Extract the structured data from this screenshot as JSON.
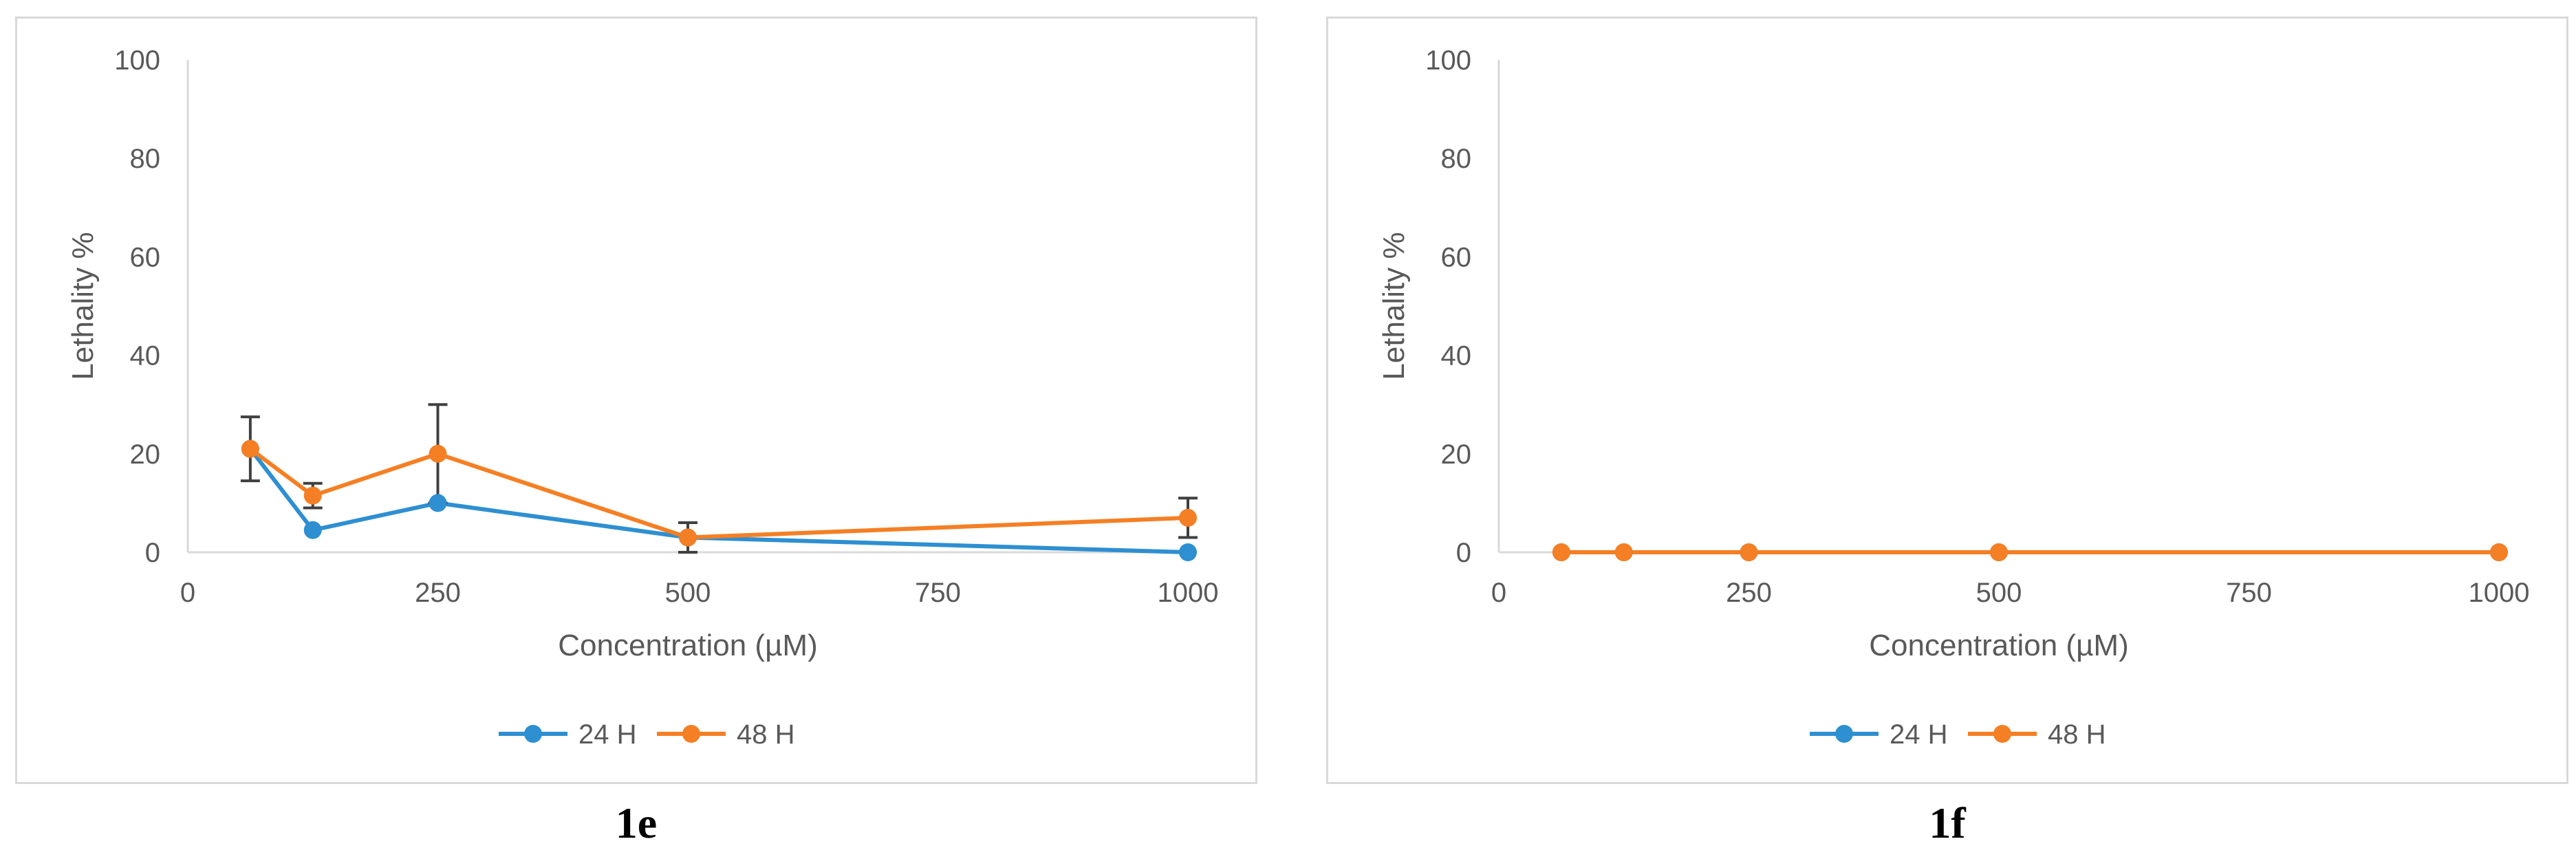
{
  "chart_data": [
    {
      "type": "line",
      "panel_label": "1e",
      "title": "",
      "xlabel": "Concentration (µM)",
      "ylabel": "Lethality %",
      "xlim": [
        0,
        1000
      ],
      "ylim": [
        0,
        100
      ],
      "x_ticks": [
        "0",
        "250",
        "500",
        "750",
        "1000"
      ],
      "y_ticks": [
        "0",
        "20",
        "40",
        "60",
        "80",
        "100"
      ],
      "grid": false,
      "legend": "bottom",
      "x": [
        62.5,
        125,
        250,
        500,
        1000
      ],
      "series": [
        {
          "name": "24 H",
          "color": "#2E8FD1",
          "values": [
            21,
            4.5,
            10,
            3,
            0
          ]
        },
        {
          "name": "48 H",
          "color": "#F57F24",
          "values": [
            21,
            11.5,
            20,
            3,
            7
          ],
          "error": [
            6.5,
            2.5,
            10,
            3,
            4
          ]
        }
      ]
    },
    {
      "type": "line",
      "panel_label": "1f",
      "title": "",
      "xlabel": "Concentration (µM)",
      "ylabel": "Lethality %",
      "xlim": [
        0,
        1000
      ],
      "ylim": [
        0,
        100
      ],
      "x_ticks": [
        "0",
        "250",
        "500",
        "750",
        "1000"
      ],
      "y_ticks": [
        "0",
        "20",
        "40",
        "60",
        "80",
        "100"
      ],
      "grid": false,
      "legend": "bottom",
      "x": [
        62.5,
        125,
        250,
        500,
        1000
      ],
      "series": [
        {
          "name": "24 H",
          "color": "#2E8FD1",
          "values": [
            0,
            0,
            0,
            0,
            0
          ]
        },
        {
          "name": "48 H",
          "color": "#F57F24",
          "values": [
            0,
            0,
            0,
            0,
            0
          ]
        }
      ]
    }
  ]
}
